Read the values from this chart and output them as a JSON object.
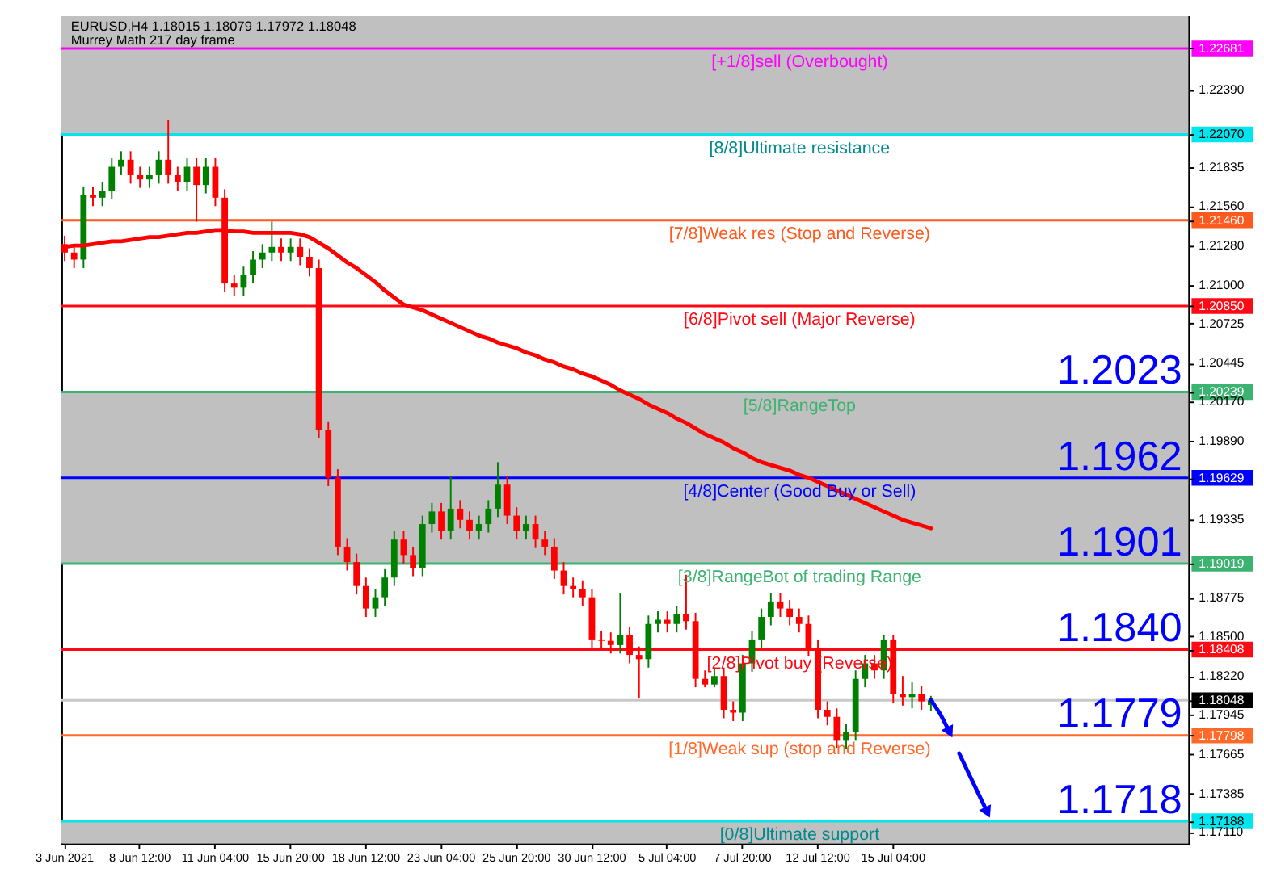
{
  "chart_data": {
    "type": "candlestick",
    "title": "EURUSD,H4  1.18015 1.18079 1.17972 1.18048",
    "subtitle": "Murrey Math 217 day frame",
    "categories": [
      "3 Jun 2021",
      null,
      null,
      null,
      null,
      null,
      null,
      null,
      "8 Jun 12:00",
      null,
      null,
      null,
      null,
      null,
      null,
      null,
      "11 Jun 04:00",
      null,
      null,
      null,
      null,
      null,
      null,
      null,
      "15 Jun 20:00",
      null,
      null,
      null,
      null,
      null,
      null,
      null,
      "18 Jun 12:00",
      null,
      null,
      null,
      null,
      null,
      null,
      null,
      "23 Jun 04:00",
      null,
      null,
      null,
      null,
      null,
      null,
      null,
      "25 Jun 20:00",
      null,
      null,
      null,
      null,
      null,
      null,
      null,
      "30 Jun 12:00",
      null,
      null,
      null,
      null,
      null,
      null,
      null,
      "5 Jul 04:00",
      null,
      null,
      null,
      null,
      null,
      null,
      null,
      "7 Jul 20:00",
      null,
      null,
      null,
      null,
      null,
      null,
      null,
      "12 Jul 12:00",
      null,
      null,
      null,
      null,
      null,
      null,
      null,
      "15 Jul 04:00",
      null,
      null,
      null,
      null,
      null,
      null,
      null,
      null,
      null,
      null,
      null,
      null,
      null,
      null,
      null,
      null,
      null,
      null,
      null,
      null,
      null,
      null,
      null,
      null,
      null,
      null,
      null,
      null,
      null,
      null,
      null
    ],
    "ohlc": [
      [
        1.2129,
        1.2135,
        1.2117,
        1.2123
      ],
      [
        1.2123,
        1.2129,
        1.2112,
        1.2118
      ],
      [
        1.2118,
        1.217,
        1.2112,
        1.2164
      ],
      [
        1.2164,
        1.217,
        1.2156,
        1.2162
      ],
      [
        1.2162,
        1.2173,
        1.2156,
        1.2167
      ],
      [
        1.2167,
        1.219,
        1.2161,
        1.2184
      ],
      [
        1.2184,
        1.2195,
        1.2178,
        1.2189
      ],
      [
        1.2189,
        1.2195,
        1.2172,
        1.2178
      ],
      [
        1.2178,
        1.2184,
        1.2169,
        1.2175
      ],
      [
        1.2175,
        1.2184,
        1.2169,
        1.2178
      ],
      [
        1.2178,
        1.2195,
        1.2172,
        1.2189
      ],
      [
        1.2189,
        1.2217,
        1.2172,
        1.2178
      ],
      [
        1.2178,
        1.2184,
        1.2167,
        1.2173
      ],
      [
        1.2173,
        1.219,
        1.2167,
        1.2184
      ],
      [
        1.2184,
        1.219,
        1.2145,
        1.2171
      ],
      [
        1.2171,
        1.219,
        1.2165,
        1.2184
      ],
      [
        1.2184,
        1.219,
        1.2156,
        1.2162
      ],
      [
        1.2162,
        1.2168,
        1.2095,
        1.2101
      ],
      [
        1.2101,
        1.2107,
        1.2092,
        1.2098
      ],
      [
        1.2098,
        1.2113,
        1.2092,
        1.2107
      ],
      [
        1.2107,
        1.2124,
        1.2101,
        1.2118
      ],
      [
        1.2118,
        1.2129,
        1.2112,
        1.2123
      ],
      [
        1.2123,
        1.2145,
        1.2117,
        1.2127
      ],
      [
        1.2127,
        1.2133,
        1.2117,
        1.2123
      ],
      [
        1.2123,
        1.2133,
        1.2117,
        1.2127
      ],
      [
        1.2127,
        1.2133,
        1.2114,
        1.212
      ],
      [
        1.212,
        1.2126,
        1.2106,
        1.2112
      ],
      [
        1.2112,
        1.2118,
        1.1991,
        1.1997
      ],
      [
        1.1997,
        1.2003,
        1.1957,
        1.1963
      ],
      [
        1.1963,
        1.1969,
        1.1908,
        1.1914
      ],
      [
        1.1914,
        1.192,
        1.1897,
        1.1903
      ],
      [
        1.1903,
        1.1909,
        1.188,
        1.1886
      ],
      [
        1.1886,
        1.1892,
        1.1864,
        1.187
      ],
      [
        1.187,
        1.1884,
        1.1864,
        1.1878
      ],
      [
        1.1878,
        1.1898,
        1.1872,
        1.1892
      ],
      [
        1.1892,
        1.1925,
        1.1886,
        1.1919
      ],
      [
        1.1919,
        1.1925,
        1.1902,
        1.1908
      ],
      [
        1.1908,
        1.1914,
        1.1893,
        1.1899
      ],
      [
        1.1899,
        1.1936,
        1.1893,
        1.193
      ],
      [
        1.193,
        1.1945,
        1.1924,
        1.1939
      ],
      [
        1.1939,
        1.1945,
        1.1919,
        1.1925
      ],
      [
        1.1925,
        1.1964,
        1.1919,
        1.1941
      ],
      [
        1.1941,
        1.1947,
        1.1927,
        1.1933
      ],
      [
        1.1933,
        1.1939,
        1.1919,
        1.1925
      ],
      [
        1.1925,
        1.1936,
        1.1919,
        1.193
      ],
      [
        1.193,
        1.1947,
        1.1924,
        1.1941
      ],
      [
        1.1941,
        1.1974,
        1.1935,
        1.1958
      ],
      [
        1.1958,
        1.1964,
        1.193,
        1.1936
      ],
      [
        1.1936,
        1.1942,
        1.1919,
        1.1925
      ],
      [
        1.1925,
        1.1936,
        1.1919,
        1.193
      ],
      [
        1.193,
        1.1936,
        1.1913,
        1.1919
      ],
      [
        1.1919,
        1.1925,
        1.1908,
        1.1914
      ],
      [
        1.1914,
        1.192,
        1.1891,
        1.1897
      ],
      [
        1.1897,
        1.1903,
        1.188,
        1.1886
      ],
      [
        1.1886,
        1.1892,
        1.1878,
        1.1884
      ],
      [
        1.1884,
        1.189,
        1.1872,
        1.1878
      ],
      [
        1.1878,
        1.1884,
        1.1842,
        1.1848
      ],
      [
        1.1848,
        1.1854,
        1.1841,
        1.1847
      ],
      [
        1.1847,
        1.1853,
        1.1838,
        1.1844
      ],
      [
        1.1844,
        1.1881,
        1.1838,
        1.1851
      ],
      [
        1.1851,
        1.1857,
        1.1831,
        1.1837
      ],
      [
        1.1837,
        1.1843,
        1.1806,
        1.1834
      ],
      [
        1.1834,
        1.1865,
        1.1828,
        1.1859
      ],
      [
        1.1859,
        1.1868,
        1.1853,
        1.1862
      ],
      [
        1.1862,
        1.1868,
        1.1853,
        1.1859
      ],
      [
        1.1859,
        1.1872,
        1.1853,
        1.1866
      ],
      [
        1.1866,
        1.1894,
        1.1855,
        1.1861
      ],
      [
        1.1861,
        1.1867,
        1.1814,
        1.182
      ],
      [
        1.182,
        1.1826,
        1.1814,
        1.1816
      ],
      [
        1.1816,
        1.1828,
        1.1814,
        1.1822
      ],
      [
        1.1822,
        1.1828,
        1.1792,
        1.1798
      ],
      [
        1.1798,
        1.1804,
        1.179,
        1.1796
      ],
      [
        1.1796,
        1.1837,
        1.179,
        1.1831
      ],
      [
        1.1831,
        1.1854,
        1.1825,
        1.1848
      ],
      [
        1.1848,
        1.187,
        1.1842,
        1.1864
      ],
      [
        1.1864,
        1.1881,
        1.1858,
        1.1875
      ],
      [
        1.1875,
        1.1881,
        1.1864,
        1.187
      ],
      [
        1.187,
        1.1876,
        1.1858,
        1.1864
      ],
      [
        1.1864,
        1.187,
        1.1853,
        1.1859
      ],
      [
        1.1859,
        1.1865,
        1.1836,
        1.1842
      ],
      [
        1.1842,
        1.1848,
        1.1792,
        1.1798
      ],
      [
        1.1798,
        1.1804,
        1.1787,
        1.1793
      ],
      [
        1.1793,
        1.1799,
        1.1771,
        1.1776
      ],
      [
        1.1776,
        1.1788,
        1.177,
        1.1782
      ],
      [
        1.1782,
        1.1826,
        1.1776,
        1.182
      ],
      [
        1.182,
        1.1837,
        1.1814,
        1.1831
      ],
      [
        1.1831,
        1.1837,
        1.182,
        1.1826
      ],
      [
        1.1826,
        1.1851,
        1.182,
        1.1848
      ],
      [
        1.1848,
        1.1851,
        1.1803,
        1.1809
      ],
      [
        1.1809,
        1.1822,
        1.1801,
        1.1807
      ],
      [
        1.1807,
        1.1818,
        1.1799,
        1.1809
      ],
      [
        1.1809,
        1.1815,
        1.1798,
        1.1804
      ],
      [
        1.18015,
        1.18079,
        1.17972,
        1.18048
      ],
      null,
      null,
      null,
      null,
      null,
      null,
      null,
      null,
      null,
      null,
      null,
      null,
      null,
      null,
      null,
      null,
      null,
      null,
      null,
      null,
      null,
      null,
      null,
      null,
      null,
      null,
      null
    ],
    "series": [
      {
        "type": "line",
        "color": "#ff0000",
        "values": [
          1.2127,
          1.2128,
          1.2128,
          1.2129,
          1.213,
          1.2131,
          1.2131,
          1.2132,
          1.2133,
          1.2134,
          1.2134,
          1.2135,
          1.2136,
          1.2137,
          1.2137,
          1.2138,
          1.2139,
          1.2139,
          1.2138,
          1.2138,
          1.2137,
          1.2137,
          1.2137,
          1.2137,
          1.2137,
          1.2136,
          1.2134,
          1.213,
          1.2126,
          1.2121,
          1.2116,
          1.2112,
          1.2107,
          1.2102,
          1.2096,
          1.2091,
          1.2086,
          1.2084,
          1.2082,
          1.2079,
          1.2076,
          1.2073,
          1.207,
          1.2067,
          1.2064,
          1.2062,
          1.2059,
          1.2057,
          1.2055,
          1.2052,
          1.205,
          1.2047,
          1.2045,
          1.2042,
          1.204,
          1.2037,
          1.2035,
          1.2032,
          1.2029,
          1.2025,
          1.2022,
          1.2019,
          1.2015,
          1.2012,
          1.2009,
          1.2005,
          1.2002,
          1.1998,
          1.1994,
          1.1991,
          1.1988,
          1.1984,
          1.1981,
          1.1977,
          1.1974,
          1.1972,
          1.197,
          1.1968,
          1.1965,
          1.1963,
          1.196,
          1.1957,
          1.1954,
          1.1951,
          1.1948,
          1.1945,
          1.1942,
          1.1939,
          1.1936,
          1.1933,
          1.1931,
          1.1929,
          1.1927,
          null,
          null,
          null,
          null,
          null,
          null,
          null,
          null,
          null,
          null,
          null,
          null,
          null,
          null,
          null,
          null,
          null,
          null,
          null,
          null,
          null,
          null,
          null,
          null,
          null,
          null,
          null
        ]
      },
      {
        "type": "line",
        "color": "#0000ff",
        "values": [
          null,
          null,
          null,
          null,
          null,
          null,
          null,
          null,
          null,
          null,
          null,
          null,
          null,
          null,
          null,
          null,
          null,
          null,
          null,
          null,
          null,
          null,
          null,
          null,
          null,
          null,
          null,
          null,
          null,
          null,
          null,
          null,
          null,
          null,
          null,
          null,
          null,
          null,
          null,
          null,
          null,
          null,
          null,
          null,
          null,
          null,
          null,
          null,
          null,
          null,
          null,
          null,
          null,
          null,
          null,
          null,
          null,
          null,
          null,
          null,
          null,
          null,
          null,
          null,
          null,
          null,
          null,
          null,
          null,
          null,
          null,
          null,
          null,
          null,
          null,
          null,
          null,
          null,
          null,
          null,
          null,
          null,
          null,
          null,
          null,
          null,
          null,
          null,
          null,
          null,
          null,
          null,
          1.1805,
          1.1795,
          1.1782,
          null,
          null,
          null,
          null,
          null,
          null,
          null,
          null,
          null,
          null,
          null,
          null,
          null,
          null,
          null,
          null,
          null,
          null,
          null,
          null,
          null,
          null,
          null,
          null,
          null
        ]
      },
      {
        "type": "line",
        "color": "#0000ff",
        "values": [
          null,
          null,
          null,
          null,
          null,
          null,
          null,
          null,
          null,
          null,
          null,
          null,
          null,
          null,
          null,
          null,
          null,
          null,
          null,
          null,
          null,
          null,
          null,
          null,
          null,
          null,
          null,
          null,
          null,
          null,
          null,
          null,
          null,
          null,
          null,
          null,
          null,
          null,
          null,
          null,
          null,
          null,
          null,
          null,
          null,
          null,
          null,
          null,
          null,
          null,
          null,
          null,
          null,
          null,
          null,
          null,
          null,
          null,
          null,
          null,
          null,
          null,
          null,
          null,
          null,
          null,
          null,
          null,
          null,
          null,
          null,
          null,
          null,
          null,
          null,
          null,
          null,
          null,
          null,
          null,
          null,
          null,
          null,
          null,
          null,
          null,
          null,
          null,
          null,
          null,
          null,
          null,
          null,
          null,
          null,
          1.1767,
          1.1753,
          1.1739,
          1.1725,
          null,
          null,
          null,
          null,
          null,
          null,
          null,
          null,
          null,
          null,
          null,
          null,
          null,
          null,
          null,
          null,
          null,
          null,
          null,
          null,
          null
        ]
      }
    ],
    "ylim": [
      1.1703,
      1.2291
    ],
    "yticks": [
      {
        "value": 1.22681,
        "label": "1.22681"
      },
      {
        "value": 1.2239,
        "label": "1.22390"
      },
      {
        "value": 1.2207,
        "label": "1.22070"
      },
      1.21835,
      {
        "value": 1.2156,
        "label": "1.21560"
      },
      {
        "value": 1.2146,
        "label": "1.21460"
      },
      {
        "value": 1.2128,
        "label": "1.21280"
      },
      {
        "value": 1.21,
        "label": "1.21000"
      },
      {
        "value": 1.2085,
        "label": "1.20850"
      },
      1.20725,
      1.20445,
      {
        "value": 1.20239,
        "label": "1.20239"
      },
      {
        "value": 1.2017,
        "label": "1.20170"
      },
      {
        "value": 1.1989,
        "label": "1.19890"
      },
      {
        "value": 1.19629,
        "label": "1.19629"
      },
      1.19335,
      {
        "value": 1.19019,
        "label": "1.19019"
      },
      1.18775,
      {
        "value": 1.185,
        "label": "1.18500"
      },
      {
        "value": 1.18408,
        "label": "1.18408"
      },
      {
        "value": 1.1822,
        "label": "1.18220"
      },
      {
        "value": 1.18048,
        "label": "1.18048"
      },
      1.17945,
      {
        "value": 1.17798,
        "label": "1.17798"
      },
      1.17665,
      1.17385,
      {
        "value": 1.17188,
        "label": "1.17188"
      },
      {
        "value": 1.1711,
        "label": "1.17110"
      }
    ],
    "bands": [
      {
        "axis": "y",
        "from": 1.2207,
        "to": 1.2291,
        "color": "#c0c0c0"
      },
      {
        "axis": "y",
        "from": 1.19019,
        "to": 1.20239,
        "color": "#c0c0c0"
      },
      {
        "axis": "y",
        "from": 1.1703,
        "to": 1.17188,
        "color": "#c0c0c0"
      }
    ],
    "ref_lines": [
      {
        "axis": "y",
        "value": 1.22681,
        "label": "[+1/8]sell (Overbought)",
        "color": "#ff00ff"
      },
      {
        "axis": "y",
        "value": 1.2207,
        "label": "[8/8]Ultimate resistance",
        "color": "#00e5ee"
      },
      {
        "axis": "y",
        "value": 1.2146,
        "label": "[7/8]Weak res (Stop and Reverse)",
        "color": "#ff5a1e"
      },
      {
        "axis": "y",
        "value": 1.2085,
        "label": "[6/8]Pivot sell (Major Reverse)",
        "color": "#ff0a14"
      },
      {
        "axis": "y",
        "value": 1.20239,
        "label": "[5/8]RangeTop",
        "color": "#3cb371"
      },
      {
        "axis": "y",
        "value": 1.19629,
        "label": "[4/8]Center (Good Buy or Sell)",
        "color": "#0000ff"
      },
      {
        "axis": "y",
        "value": 1.19019,
        "label": "[3/8]RangeBot of trading Range",
        "color": "#3cb371"
      },
      {
        "axis": "y",
        "value": 1.18408,
        "label": "[2/8]Pivot buy (Reverse)",
        "color": "#ff0a14"
      },
      {
        "axis": "y",
        "value": 1.18048,
        "color": "#c8c8c8"
      },
      {
        "axis": "y",
        "value": 1.17798,
        "label": "[1/8]Weak sup (stop and Reverse)",
        "color": "#ff6a2a"
      },
      {
        "axis": "y",
        "value": 1.17188,
        "label": "[0/8]Ultimate support",
        "color": "#00e5ee"
      }
    ],
    "annotations": [
      {
        "text": "1.2023",
        "y": 1.2023
      },
      {
        "text": "1.1962",
        "y": 1.1962
      },
      {
        "text": "1.1901",
        "y": 1.1901
      },
      {
        "text": "1.1840",
        "y": 1.184
      },
      {
        "text": "1.1779",
        "y": 1.1779
      },
      {
        "text": "1.1718",
        "y": 1.1718
      }
    ]
  }
}
